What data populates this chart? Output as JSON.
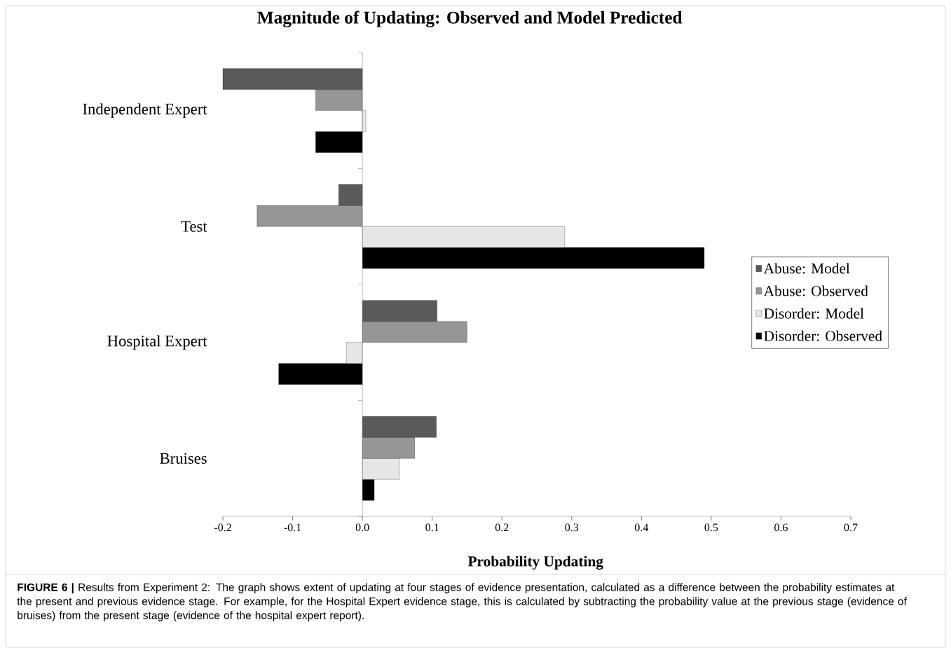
{
  "chart_data": {
    "type": "bar",
    "orientation": "horizontal",
    "title": "Magnitude of Updating: Observed and Model Predicted",
    "xlabel": "Probability Updating",
    "categories": [
      "Independent Expert",
      "Test",
      "Hospital Expert",
      "Bruises"
    ],
    "series": [
      {
        "name": "Abuse: Model",
        "color": "#5a5a5a",
        "values": [
          -0.2,
          -0.034,
          0.107,
          0.106
        ]
      },
      {
        "name": "Abuse: Observed",
        "color": "#969696",
        "values": [
          -0.067,
          -0.151,
          0.15,
          0.075
        ]
      },
      {
        "name": "Disorder: Model",
        "color": "#e6e6e6",
        "values": [
          0.005,
          0.29,
          -0.023,
          0.053
        ]
      },
      {
        "name": "Disorder: Observed",
        "color": "#000000",
        "values": [
          -0.067,
          0.49,
          -0.12,
          0.017
        ]
      }
    ],
    "xlim": [
      -0.2,
      0.7
    ],
    "xticks": [
      -0.2,
      -0.1,
      {
        "value": 0,
        "label": "0.0"
      },
      0.1,
      0.2,
      0.3,
      0.4,
      0.5,
      0.6,
      0.7
    ],
    "legend": "right",
    "annotations": [
      "**FIGURE 6 |** Results from Experiment 2: The graph shows extent of updating at four stages of evidence presentation, calculated as a difference between the probability estimates at the present and previous evidence stage. For example, for the Hospital Expert evidence stage, this is calculated by subtracting the probability value at the previous stage (evidence of bruises) from the present stage (evidence of the hospital expert report)."
    ]
  }
}
